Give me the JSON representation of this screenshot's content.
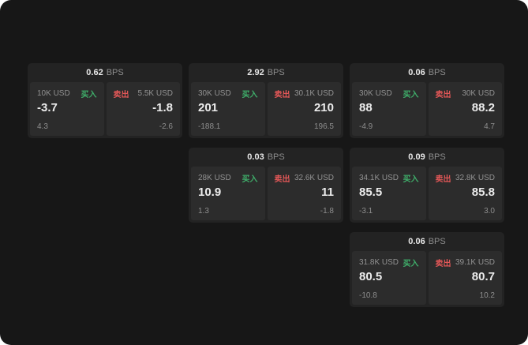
{
  "labels": {
    "buy": "买入",
    "sell": "卖出",
    "bps": "BPS"
  },
  "colors": {
    "buy": "#3fae6a",
    "sell": "#e25757",
    "background": "#171717",
    "card": "#232323",
    "panel": "#2c2c2c"
  },
  "cards": [
    {
      "row": 1,
      "col": 1,
      "bps": "0.62",
      "buy_size": "10K USD",
      "buy_price": "-3.7",
      "buy_delta": "4.3",
      "sell_size": "5.5K USD",
      "sell_price": "-1.8",
      "sell_delta": "-2.6"
    },
    {
      "row": 1,
      "col": 2,
      "bps": "2.92",
      "buy_size": "30K USD",
      "buy_price": "201",
      "buy_delta": "-188.1",
      "sell_size": "30.1K USD",
      "sell_price": "210",
      "sell_delta": "196.5"
    },
    {
      "row": 1,
      "col": 3,
      "bps": "0.06",
      "buy_size": "30K USD",
      "buy_price": "88",
      "buy_delta": "-4.9",
      "sell_size": "30K USD",
      "sell_price": "88.2",
      "sell_delta": "4.7"
    },
    {
      "row": 2,
      "col": 2,
      "bps": "0.03",
      "buy_size": "28K USD",
      "buy_price": "10.9",
      "buy_delta": "1.3",
      "sell_size": "32.6K USD",
      "sell_price": "11",
      "sell_delta": "-1.8"
    },
    {
      "row": 2,
      "col": 3,
      "bps": "0.09",
      "buy_size": "34.1K USD",
      "buy_price": "85.5",
      "buy_delta": "-3.1",
      "sell_size": "32.8K USD",
      "sell_price": "85.8",
      "sell_delta": "3.0"
    },
    {
      "row": 3,
      "col": 3,
      "bps": "0.06",
      "buy_size": "31.8K USD",
      "buy_price": "80.5",
      "buy_delta": "-10.8",
      "sell_size": "39.1K USD",
      "sell_price": "80.7",
      "sell_delta": "10.2"
    }
  ]
}
